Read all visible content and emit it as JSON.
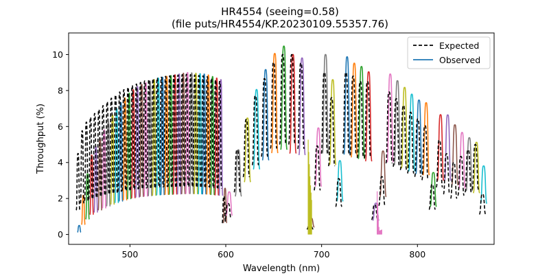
{
  "chart_data": {
    "type": "line",
    "title": "HR4554 (seeing=0.58)",
    "subtitle": "(file puts/HR4554/KP.20230109.55357.76)",
    "xlabel": "Wavelength (nm)",
    "ylabel": "Throughput (%)",
    "xlim": [
      436,
      880
    ],
    "ylim": [
      -0.55,
      11.2
    ],
    "xticks": [
      500,
      600,
      700,
      800
    ],
    "yticks": [
      0,
      2,
      4,
      6,
      8,
      10
    ],
    "legend": {
      "position": "top-right",
      "entries": [
        {
          "label": "Expected",
          "style": "dashed",
          "color": "#000000"
        },
        {
          "label": "Observed",
          "style": "solid",
          "color": "#1f77b4"
        }
      ]
    },
    "palette": [
      "#1f77b4",
      "#ff7f0e",
      "#2ca02c",
      "#d62728",
      "#9467bd",
      "#8c564b",
      "#e377c2",
      "#7f7f7f",
      "#bcbd22",
      "#17becf"
    ],
    "series": [
      {
        "name": "Expected",
        "x": [
          447,
          450,
          455,
          460,
          470,
          480,
          490,
          500,
          510,
          520,
          530,
          540,
          550,
          560,
          570,
          580,
          590,
          595,
          600,
          605,
          612,
          620,
          630,
          640,
          650,
          660,
          670,
          680,
          686,
          690,
          695,
          700,
          710,
          718,
          725,
          730,
          740,
          750,
          758,
          762,
          765,
          770,
          780,
          790,
          800,
          810,
          815,
          820,
          828,
          835,
          840,
          850,
          860,
          868,
          870
        ],
        "y": [
          4.5,
          5.6,
          6.2,
          6.5,
          7.0,
          7.5,
          7.9,
          8.2,
          8.4,
          8.6,
          8.7,
          8.8,
          8.85,
          8.9,
          8.85,
          8.8,
          8.6,
          8.5,
          1.0,
          2.0,
          4.5,
          6.0,
          7.5,
          8.5,
          9.5,
          10.0,
          10.0,
          9.5,
          2.0,
          0.2,
          3.0,
          9.0,
          9.0,
          2.0,
          9.0,
          9.0,
          8.5,
          8.5,
          0.2,
          0.2,
          4.5,
          8.0,
          7.5,
          7.0,
          6.5,
          6.0,
          1.5,
          5.5,
          5.0,
          4.0,
          4.0,
          4.5,
          5.0,
          5.0,
          0.0
        ]
      },
      {
        "name": "Observed",
        "x": [
          447,
          450,
          455,
          460,
          470,
          480,
          490,
          500,
          510,
          520,
          530,
          540,
          550,
          560,
          570,
          580,
          590,
          595,
          600,
          605,
          612,
          620,
          630,
          640,
          650,
          660,
          670,
          680,
          686,
          690,
          695,
          700,
          710,
          718,
          725,
          730,
          740,
          750,
          758,
          762,
          765,
          770,
          780,
          790,
          800,
          810,
          815,
          820,
          828,
          835,
          840,
          850,
          860,
          868,
          870
        ],
        "y": [
          0.5,
          1.8,
          3.2,
          4.4,
          5.5,
          6.5,
          7.3,
          7.9,
          8.3,
          8.5,
          8.7,
          8.8,
          8.9,
          9.0,
          8.95,
          8.9,
          8.7,
          8.6,
          1.5,
          2.7,
          4.5,
          6.0,
          7.8,
          9.0,
          10.0,
          10.5,
          10.0,
          9.8,
          3.0,
          0.3,
          4.0,
          10.0,
          10.0,
          3.0,
          10.0,
          9.6,
          9.4,
          9.0,
          0.2,
          0.3,
          6.5,
          9.0,
          8.5,
          8.0,
          7.5,
          7.3,
          2.0,
          6.5,
          6.8,
          6.5,
          6.0,
          5.5,
          5.2,
          4.8,
          3.0
        ]
      }
    ]
  }
}
